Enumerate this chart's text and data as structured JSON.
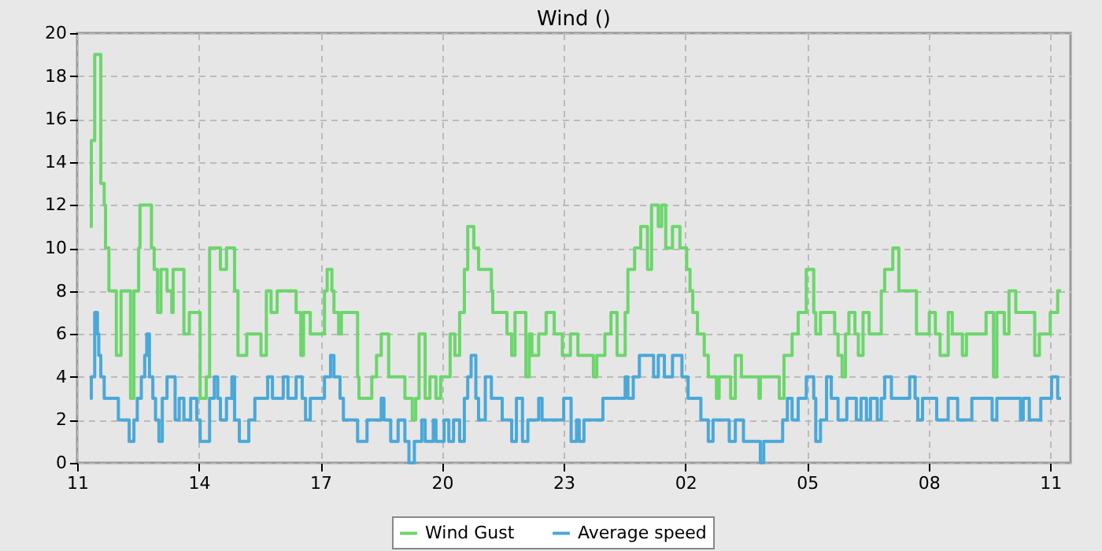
{
  "chart_data": {
    "type": "step",
    "title": "Wind ()",
    "xlim": [
      "--01-01T11:00",
      "--01-02T11:30"
    ],
    "xticks": [
      {
        "value": "--01-01T11:00",
        "label": "11"
      },
      {
        "value": "--01-01T14:00",
        "label": "14"
      },
      {
        "value": "--01-01T17:00",
        "label": "17"
      },
      {
        "value": "--01-01T20:00",
        "label": "20"
      },
      {
        "value": "--01-01T23:00",
        "label": "23"
      },
      {
        "value": "--01-02T02:00",
        "label": "02"
      },
      {
        "value": "--01-02T05:00",
        "label": "05"
      },
      {
        "value": "--01-02T08:00",
        "label": "08"
      },
      {
        "value": "--01-02T11:00",
        "label": "11"
      }
    ],
    "ylim": [
      0,
      20
    ],
    "yticks": [
      0,
      2,
      4,
      6,
      8,
      10,
      12,
      14,
      16,
      18,
      20
    ],
    "grid": true,
    "legend": "bottom",
    "line_style": "solid",
    "series": [
      {
        "name": "Wind Gust",
        "color": "#6cd66c",
        "x": [
          "--01-01T11:19",
          "--01-01T11:21",
          "--01-01T11:26",
          "--01-01T11:35",
          "--01-01T11:40",
          "--01-01T11:42",
          "--01-01T11:47",
          "--01-01T11:58",
          "--01-01T12:05",
          "--01-01T12:19",
          "--01-01T12:24",
          "--01-01T12:31",
          "--01-01T12:33",
          "--01-01T12:50",
          "--01-01T12:54",
          "--01-01T12:59",
          "--01-01T13:04",
          "--01-01T13:13",
          "--01-01T13:20",
          "--01-01T13:22",
          "--01-01T13:38",
          "--01-01T13:46",
          "--01-01T14:02",
          "--01-01T14:11",
          "--01-01T14:16",
          "--01-01T14:32",
          "--01-01T14:41",
          "--01-01T14:53",
          "--01-01T14:58",
          "--01-01T15:11",
          "--01-01T15:32",
          "--01-01T15:40",
          "--01-01T15:47",
          "--01-01T15:56",
          "--01-01T16:24",
          "--01-01T16:31",
          "--01-01T16:35",
          "--01-01T16:45",
          "--01-01T17:06",
          "--01-01T17:10",
          "--01-01T17:17",
          "--01-01T17:20",
          "--01-01T17:27",
          "--01-01T17:31",
          "--01-01T17:55",
          "--01-01T17:57",
          "--01-01T18:16",
          "--01-01T18:23",
          "--01-01T18:30",
          "--01-01T18:41",
          "--01-01T19:05",
          "--01-01T19:16",
          "--01-01T19:21",
          "--01-01T19:26",
          "--01-01T19:35",
          "--01-01T19:42",
          "--01-01T19:51",
          "--01-01T19:58",
          "--01-01T20:12",
          "--01-01T20:19",
          "--01-01T20:26",
          "--01-01T20:33",
          "--01-01T20:38",
          "--01-01T20:47",
          "--01-01T20:54",
          "--01-01T21:13",
          "--01-01T21:15",
          "--01-01T21:27",
          "--01-01T21:36",
          "--01-01T21:43",
          "--01-01T21:48",
          "--01-01T22:04",
          "--01-01T22:09",
          "--01-01T22:13",
          "--01-01T22:23",
          "--01-01T22:34",
          "--01-01T22:46",
          "--01-01T22:58",
          "--01-01T23:10",
          "--01-01T23:21",
          "--01-01T23:44",
          "--01-01T23:49",
          "--01-02T00:01",
          "--01-02T00:10",
          "--01-02T00:19",
          "--01-02T00:31",
          "--01-02T00:35",
          "--01-02T00:45",
          "--01-02T00:54",
          "--01-02T01:04",
          "--01-02T01:10",
          "--01-02T01:20",
          "--01-02T01:25",
          "--01-02T01:31",
          "--01-02T01:41",
          "--01-02T01:52",
          "--01-02T02:02",
          "--01-02T02:07",
          "--01-02T02:11",
          "--01-02T02:18",
          "--01-02T02:28",
          "--01-02T02:34",
          "--01-02T02:46",
          "--01-02T02:50",
          "--01-02T03:07",
          "--01-02T03:14",
          "--01-02T03:23",
          "--01-02T03:49",
          "--01-02T03:51",
          "--01-02T04:19",
          "--01-02T04:26",
          "--01-02T04:38",
          "--01-02T04:47",
          "--01-02T04:59",
          "--01-02T05:10",
          "--01-02T05:13",
          "--01-02T05:20",
          "--01-02T05:41",
          "--01-02T05:46",
          "--01-02T05:52",
          "--01-02T05:57",
          "--01-02T06:02",
          "--01-02T06:11",
          "--01-02T06:16",
          "--01-02T06:23",
          "--01-02T06:32",
          "--01-02T06:50",
          "--01-02T06:55",
          "--01-02T07:07",
          "--01-02T07:16",
          "--01-02T07:42",
          "--01-02T08:01",
          "--01-02T08:10",
          "--01-02T08:17",
          "--01-02T08:29",
          "--01-02T08:35",
          "--01-02T08:50",
          "--01-02T08:56",
          "--01-02T09:25",
          "--01-02T09:36",
          "--01-02T09:41",
          "--01-02T09:52",
          "--01-02T09:59",
          "--01-02T10:09",
          "--01-02T10:37",
          "--01-02T10:44",
          "--01-02T11:00",
          "--01-02T11:11",
          "--01-02T11:16"
        ],
        "values": [
          11,
          15,
          19,
          13,
          12,
          10,
          8,
          5,
          8,
          3,
          8,
          10,
          12,
          10,
          9,
          7,
          9,
          8,
          7,
          9,
          6,
          7,
          3,
          4,
          10,
          9,
          10,
          8,
          5,
          6,
          5,
          8,
          7,
          8,
          7,
          5,
          7,
          6,
          8,
          9,
          8,
          7,
          6,
          7,
          4,
          3,
          4,
          5,
          6,
          4,
          3,
          2,
          3,
          6,
          3,
          4,
          3,
          4,
          6,
          5,
          7,
          9,
          11,
          10,
          9,
          8,
          7,
          7,
          6,
          5,
          7,
          4,
          6,
          5,
          6,
          7,
          6,
          5,
          6,
          5,
          4,
          5,
          6,
          7,
          5,
          7,
          9,
          10,
          11,
          9,
          12,
          11,
          12,
          10,
          11,
          10,
          9,
          8,
          7,
          6,
          5,
          4,
          3,
          4,
          3,
          5,
          4,
          3,
          4,
          3,
          5,
          6,
          7,
          9,
          7,
          6,
          7,
          6,
          5,
          4,
          6,
          7,
          6,
          5,
          7,
          6,
          8,
          9,
          10,
          8,
          6,
          7,
          6,
          5,
          7,
          6,
          5,
          6,
          7,
          4,
          7,
          6,
          8,
          7,
          5,
          6,
          7,
          8,
          8
        ]
      },
      {
        "name": "Average speed",
        "color": "#4aa8d8",
        "x": [
          "--01-01T11:19",
          "--01-01T11:21",
          "--01-01T11:26",
          "--01-01T11:30",
          "--01-01T11:32",
          "--01-01T11:35",
          "--01-01T11:40",
          "--01-01T12:01",
          "--01-01T12:17",
          "--01-01T12:24",
          "--01-01T12:29",
          "--01-01T12:35",
          "--01-01T12:40",
          "--01-01T12:43",
          "--01-01T12:47",
          "--01-01T12:52",
          "--01-01T12:56",
          "--01-01T13:01",
          "--01-01T13:06",
          "--01-01T13:13",
          "--01-01T13:25",
          "--01-01T13:31",
          "--01-01T13:38",
          "--01-01T13:48",
          "--01-01T13:57",
          "--01-01T14:02",
          "--01-01T14:16",
          "--01-01T14:23",
          "--01-01T14:28",
          "--01-01T14:32",
          "--01-01T14:41",
          "--01-01T14:49",
          "--01-01T14:53",
          "--01-01T15:00",
          "--01-01T15:14",
          "--01-01T15:23",
          "--01-01T15:42",
          "--01-01T15:49",
          "--01-01T16:05",
          "--01-01T16:12",
          "--01-01T16:24",
          "--01-01T16:33",
          "--01-01T16:38",
          "--01-01T16:45",
          "--01-01T17:06",
          "--01-01T17:15",
          "--01-01T17:20",
          "--01-01T17:29",
          "--01-01T17:34",
          "--01-01T17:55",
          "--01-01T18:09",
          "--01-01T18:30",
          "--01-01T18:34",
          "--01-01T18:44",
          "--01-01T18:55",
          "--01-01T19:05",
          "--01-01T19:11",
          "--01-01T19:19",
          "--01-01T19:30",
          "--01-01T19:35",
          "--01-01T19:47",
          "--01-01T19:51",
          "--01-01T20:03",
          "--01-01T20:10",
          "--01-01T20:17",
          "--01-01T20:26",
          "--01-01T20:33",
          "--01-01T20:38",
          "--01-01T20:43",
          "--01-01T20:50",
          "--01-01T20:54",
          "--01-01T21:04",
          "--01-01T21:13",
          "--01-01T21:29",
          "--01-01T21:43",
          "--01-01T21:50",
          "--01-01T21:59",
          "--01-01T22:07",
          "--01-01T22:23",
          "--01-01T22:28",
          "--01-01T23:00",
          "--01-01T23:11",
          "--01-01T23:19",
          "--01-01T23:23",
          "--01-01T23:30",
          "--01-01T23:58",
          "--01-02T00:31",
          "--01-02T00:35",
          "--01-02T00:43",
          "--01-02T00:52",
          "--01-02T01:13",
          "--01-02T01:20",
          "--01-02T01:29",
          "--01-02T01:41",
          "--01-02T01:55",
          "--01-02T02:04",
          "--01-02T02:23",
          "--01-02T02:34",
          "--01-02T02:41",
          "--01-02T03:05",
          "--01-02T03:14",
          "--01-02T03:26",
          "--01-02T03:51",
          "--01-02T03:56",
          "--01-02T04:24",
          "--01-02T04:31",
          "--01-02T04:38",
          "--01-02T04:47",
          "--01-02T04:59",
          "--01-02T05:10",
          "--01-02T05:13",
          "--01-02T05:20",
          "--01-02T05:29",
          "--01-02T05:36",
          "--01-02T05:46",
          "--01-02T05:59",
          "--01-02T06:13",
          "--01-02T06:20",
          "--01-02T06:28",
          "--01-02T06:34",
          "--01-02T06:44",
          "--01-02T06:50",
          "--01-02T06:55",
          "--01-02T07:05",
          "--01-02T07:32",
          "--01-02T07:40",
          "--01-02T07:44",
          "--01-02T07:51",
          "--01-02T08:12",
          "--01-02T08:29",
          "--01-02T08:43",
          "--01-02T09:04",
          "--01-02T09:34",
          "--01-02T09:41",
          "--01-02T10:16",
          "--01-02T10:20",
          "--01-02T10:29",
          "--01-02T10:46",
          "--01-02T11:02",
          "--01-02T11:11",
          "--01-02T11:16"
        ],
        "values": [
          3,
          4,
          7,
          6,
          5,
          4,
          3,
          2,
          1,
          2,
          3,
          4,
          5,
          6,
          4,
          3,
          2,
          1,
          3,
          4,
          2,
          3,
          2,
          3,
          2,
          1,
          3,
          4,
          3,
          2,
          3,
          4,
          2,
          1,
          2,
          3,
          4,
          3,
          4,
          3,
          4,
          3,
          2,
          3,
          4,
          5,
          4,
          3,
          2,
          1,
          2,
          3,
          2,
          1,
          2,
          1,
          0,
          1,
          2,
          1,
          2,
          1,
          2,
          1,
          2,
          1,
          3,
          4,
          5,
          3,
          2,
          4,
          3,
          2,
          1,
          3,
          1,
          2,
          3,
          2,
          3,
          1,
          2,
          1,
          2,
          3,
          4,
          3,
          4,
          5,
          4,
          5,
          4,
          5,
          4,
          3,
          2,
          1,
          2,
          1,
          2,
          1,
          0,
          1,
          2,
          3,
          2,
          3,
          4,
          3,
          1,
          2,
          4,
          3,
          2,
          3,
          2,
          3,
          2,
          3,
          2,
          3,
          4,
          3,
          4,
          3,
          2,
          3,
          2,
          3,
          2,
          3,
          2,
          3,
          2,
          3,
          2,
          3,
          4,
          3,
          3
        ]
      }
    ]
  }
}
